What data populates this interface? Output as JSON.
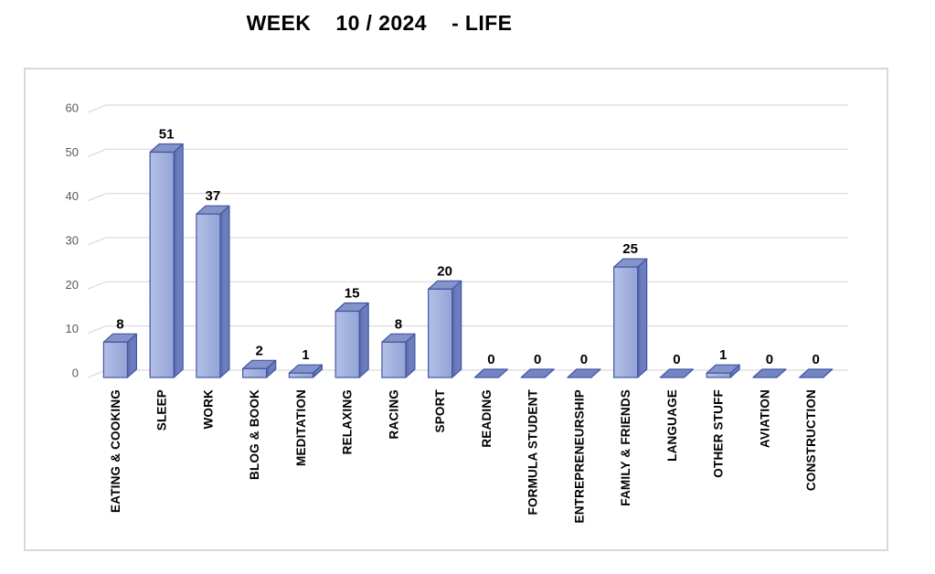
{
  "title": "WEEK    10 / 2024    - LIFE",
  "chart_data": {
    "type": "bar",
    "style": "3d-column",
    "title": "WEEK 10 / 2024 - LIFE",
    "categories": [
      "EATING & COOKING",
      "SLEEP",
      "WORK",
      "BLOG & BOOK",
      "MEDITATION",
      "RELAXING",
      "RACING",
      "SPORT",
      "READING",
      "FORMULA STUDENT",
      "ENTREPRENEURSHIP",
      "FAMILY & FRIENDS",
      "LANGUAGE",
      "OTHER STUFF",
      "AVIATION",
      "CONSTRUCTION"
    ],
    "values": [
      8,
      51,
      37,
      2,
      1,
      15,
      8,
      20,
      0,
      0,
      0,
      25,
      0,
      1,
      0,
      0
    ],
    "value_labels_shown": true,
    "xlabel": "",
    "ylabel": "",
    "ylim": [
      0,
      60
    ],
    "yticks": [
      0,
      10,
      20,
      30,
      40,
      50,
      60
    ],
    "grid": true,
    "legend": "none",
    "colors": {
      "bar_front": "#93A4D6",
      "bar_front_light": "#B3BFE6",
      "bar_side": "#6B7DBC",
      "bar_side_dark": "#5465A8",
      "bar_top": "#8493C9",
      "bar_flat": "#7486C2",
      "bar_border": "#4255A4",
      "gridline": "#D9D9D9",
      "axis_text": "#595959",
      "label_text": "#000000",
      "frame_border": "#D9D9D9",
      "background": "#FFFFFF"
    }
  }
}
